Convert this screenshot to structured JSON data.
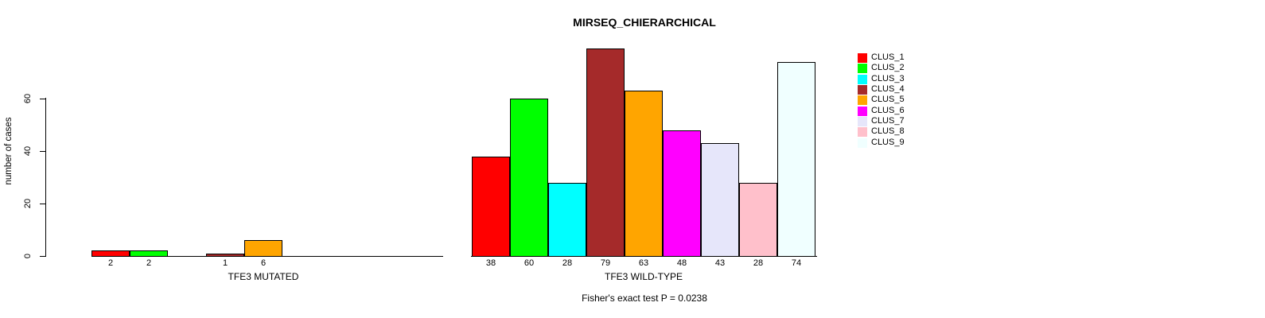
{
  "chart_data": {
    "type": "bar",
    "title": "MIRSEQ_CHIERARCHICAL",
    "ylabel": "number of cases",
    "xlabel": "",
    "ylim": [
      0,
      80
    ],
    "yticks": [
      0,
      20,
      40,
      60
    ],
    "grid": false,
    "legend_position": "right",
    "categories": [
      "CLUS_1",
      "CLUS_2",
      "CLUS_3",
      "CLUS_4",
      "CLUS_5",
      "CLUS_6",
      "CLUS_7",
      "CLUS_8",
      "CLUS_9"
    ],
    "colors": [
      "#FF0000",
      "#00FF00",
      "#00FFFF",
      "#A52A2A",
      "#FFA500",
      "#FF00FF",
      "#E6E6FA",
      "#FFC0CB",
      "#F0FFFF"
    ],
    "bar_border_color": "#000000",
    "groups": [
      {
        "label": "TFE3 MUTATED",
        "values": [
          2,
          2,
          0,
          1,
          6,
          0,
          0,
          0,
          0
        ],
        "bar_labels": [
          "2",
          "2",
          "",
          "1",
          "6",
          "",
          "",
          "",
          ""
        ]
      },
      {
        "label": "TFE3 WILD-TYPE",
        "values": [
          38,
          60,
          28,
          79,
          63,
          48,
          43,
          28,
          74
        ],
        "bar_labels": [
          "38",
          "60",
          "28",
          "79",
          "63",
          "48",
          "43",
          "28",
          "74"
        ]
      }
    ],
    "annotation": "Fisher's exact test P = 0.0238"
  }
}
